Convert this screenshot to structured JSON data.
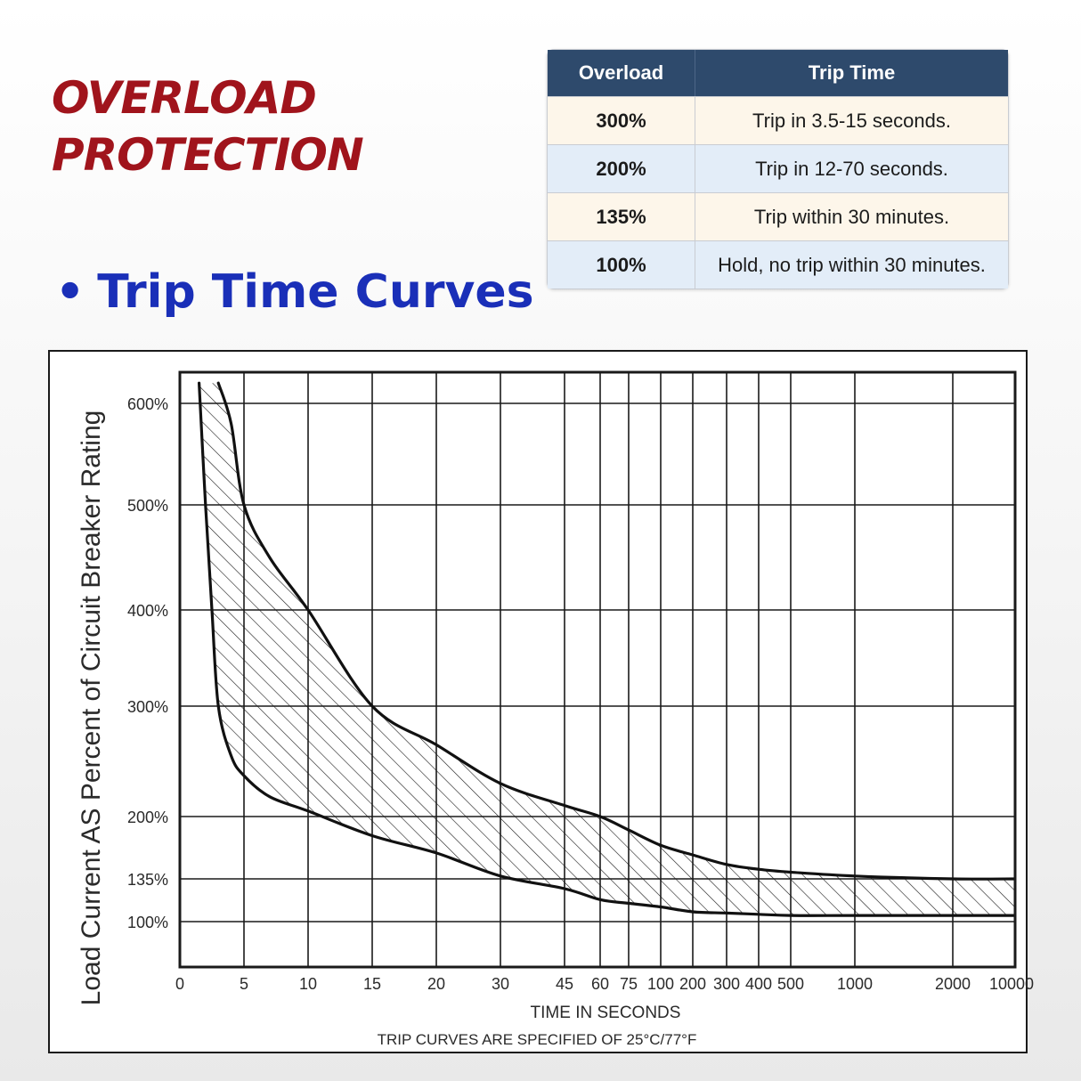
{
  "heading": {
    "line1": "OVERLOAD",
    "line2": "PROTECTION"
  },
  "subtitle": {
    "bullet": "•",
    "text": "Trip Time Curves"
  },
  "table": {
    "headers": [
      "Overload",
      "Trip Time"
    ],
    "rows": [
      [
        "300%",
        "Trip in 3.5-15 seconds."
      ],
      [
        "200%",
        "Trip in 12-70 seconds."
      ],
      [
        "135%",
        "Trip within 30 minutes."
      ],
      [
        "100%",
        "Hold, no trip within 30 minutes."
      ]
    ]
  },
  "colors": {
    "heading": "#a0141c",
    "subtitle": "#1a2fb8",
    "table_header": "#2e4a6c",
    "row_odd": "#fdf6ea",
    "row_even": "#e3edf8"
  },
  "chart_data": {
    "type": "area",
    "xlabel": "TIME IN SECONDS",
    "note": "TRIP CURVES ARE SPECIFIED OF 25°C/77°F",
    "ylabel": "Load Current AS Percent of Circuit Breaker Rating",
    "x_ticks": [
      "0",
      "5",
      "10",
      "15",
      "20",
      "30",
      "45",
      "60",
      "75",
      "100",
      "200",
      "300",
      "400",
      "500",
      "1000",
      "2000",
      "10000"
    ],
    "y_ticks": [
      "600%",
      "500%",
      "400%",
      "300%",
      "200%",
      "135%",
      "100%"
    ],
    "grid": true,
    "hatched_band": true,
    "series": [
      {
        "x": [
          "1.5",
          "2",
          "2.5",
          "3",
          "4",
          "5",
          "7",
          "10",
          "15",
          "20",
          "30",
          "45",
          "60",
          "75",
          "100",
          "200",
          "300",
          "400",
          "500",
          "1000",
          "2000",
          "10000"
        ],
        "values": [
          620,
          500,
          400,
          300,
          255,
          237,
          218,
          205,
          180,
          162,
          138,
          127,
          118,
          115,
          112,
          108,
          107,
          106,
          105,
          105,
          105,
          105
        ]
      },
      {
        "x": [
          "3",
          "4",
          "5",
          "7",
          "10",
          "15",
          "20",
          "30",
          "45",
          "60",
          "75",
          "100",
          "200",
          "300",
          "400",
          "500",
          "1000",
          "2000",
          "10000"
        ],
        "values": [
          620,
          580,
          500,
          450,
          400,
          300,
          265,
          230,
          210,
          200,
          186,
          170,
          160,
          150,
          145,
          142,
          138,
          135,
          135
        ]
      }
    ]
  }
}
